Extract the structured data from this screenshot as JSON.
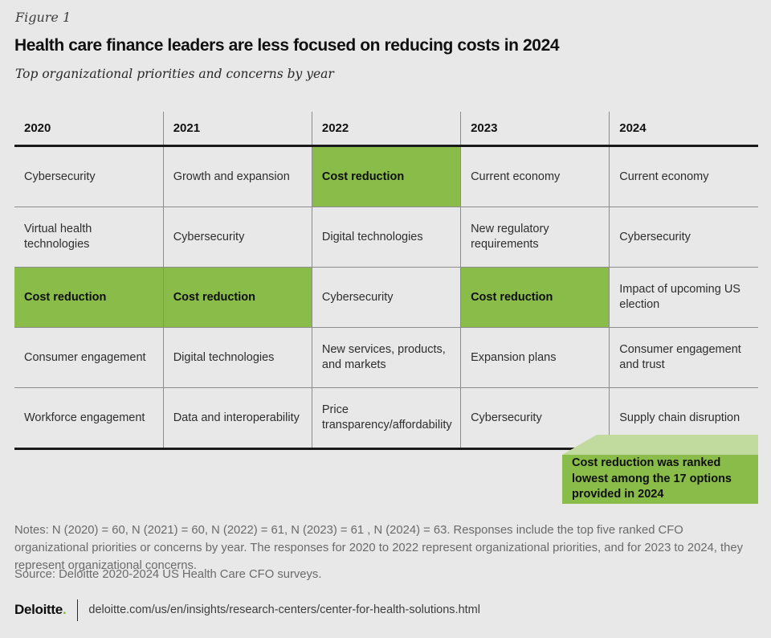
{
  "figure_label": "Figure 1",
  "title": "Health care finance leaders are less focused on reducing costs in 2024",
  "subtitle": "Top organizational priorities and concerns by year",
  "chart_data": {
    "type": "table",
    "title": "Health care finance leaders are less focused on reducing costs in 2024",
    "subtitle": "Top organizational priorities and concerns by year",
    "columns": [
      "2020",
      "2021",
      "2022",
      "2023",
      "2024"
    ],
    "rows": [
      {
        "cells": [
          {
            "text": "Cybersecurity",
            "highlight": false
          },
          {
            "text": "Growth and expansion",
            "highlight": false
          },
          {
            "text": "Cost reduction",
            "highlight": true
          },
          {
            "text": "Current economy",
            "highlight": false
          },
          {
            "text": "Current economy",
            "highlight": false
          }
        ]
      },
      {
        "cells": [
          {
            "text": "Virtual health technologies",
            "highlight": false
          },
          {
            "text": "Cybersecurity",
            "highlight": false
          },
          {
            "text": "Digital technologies",
            "highlight": false
          },
          {
            "text": "New regulatory requirements",
            "highlight": false
          },
          {
            "text": "Cybersecurity",
            "highlight": false
          }
        ]
      },
      {
        "cells": [
          {
            "text": "Cost reduction",
            "highlight": true
          },
          {
            "text": "Cost reduction",
            "highlight": true
          },
          {
            "text": "Cybersecurity",
            "highlight": false
          },
          {
            "text": "Cost reduction",
            "highlight": true
          },
          {
            "text": "Impact of upcoming US election",
            "highlight": false
          }
        ]
      },
      {
        "cells": [
          {
            "text": "Consumer engagement",
            "highlight": false
          },
          {
            "text": "Digital technologies",
            "highlight": false
          },
          {
            "text": "New services, products, and markets",
            "highlight": false
          },
          {
            "text": "Expansion plans",
            "highlight": false
          },
          {
            "text": "Consumer engagement and trust",
            "highlight": false
          }
        ]
      },
      {
        "cells": [
          {
            "text": "Workforce engagement",
            "highlight": false
          },
          {
            "text": "Data and interoperability",
            "highlight": false
          },
          {
            "text": "Price transparency/affordability",
            "highlight": false
          },
          {
            "text": "Cybersecurity",
            "highlight": false
          },
          {
            "text": "Supply chain disruption",
            "highlight": false
          }
        ]
      }
    ],
    "highlighted_value": "Cost reduction",
    "annotation": "Cost reduction was ranked lowest among the 17 options provided in 2024",
    "legend_position": "none",
    "grid": true
  },
  "callout": {
    "text": "Cost reduction was ranked lowest among the 17 options provided in 2024"
  },
  "notes": "Notes: N (2020) = 60, N (2021) = 60, N (2022) = 61, N (2023) = 61 , N (2024) = 63. Responses include the top five ranked CFO organizational priorities or concerns  by year. The responses for 2020 to 2022 represent organizational priorities, and for 2023 to 2024, they represent organizational concerns.",
  "source": "Source: Deloitte 2020-2024 US Health Care CFO surveys.",
  "footer": {
    "brand_name": "Deloitte",
    "brand_dot": ".",
    "url": "deloitte.com/us/en/insights/research-centers/center-for-health-solutions.html"
  },
  "colors": {
    "background": "#e8e8e8",
    "highlight_green": "#8abc49",
    "flap_light_green": "#c1da9e",
    "brand_green": "#86bc25",
    "rule_black": "#1a1a1a",
    "grid_gray": "#8c8c8c"
  }
}
